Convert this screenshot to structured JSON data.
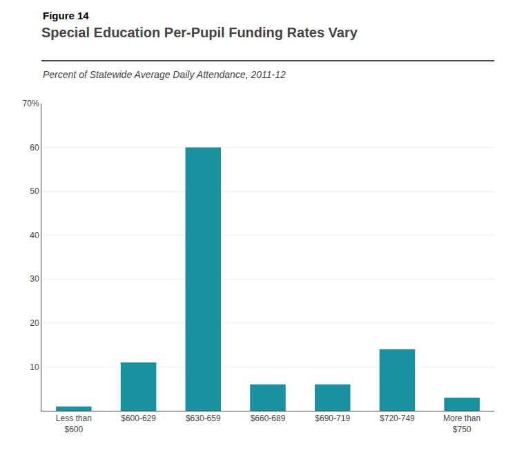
{
  "chart_data": {
    "type": "bar",
    "annotations": [
      "Figure 14"
    ],
    "title": "Special Education Per-Pupil Funding Rates Vary",
    "subtitle": "Percent of Statewide Average Daily Attendance, 2011-12",
    "categories": [
      "Less than\n$600",
      "$600-629",
      "$630-659",
      "$660-689",
      "$690-719",
      "$720-749",
      "More than\n$750"
    ],
    "values": [
      1,
      11,
      60,
      6,
      6,
      14,
      3
    ],
    "color": "#1a8fa0",
    "ylim": [
      0,
      70
    ],
    "yticks": [
      10,
      20,
      30,
      40,
      50,
      60,
      {
        "value": 70,
        "label": "70%"
      }
    ],
    "grid": true
  }
}
